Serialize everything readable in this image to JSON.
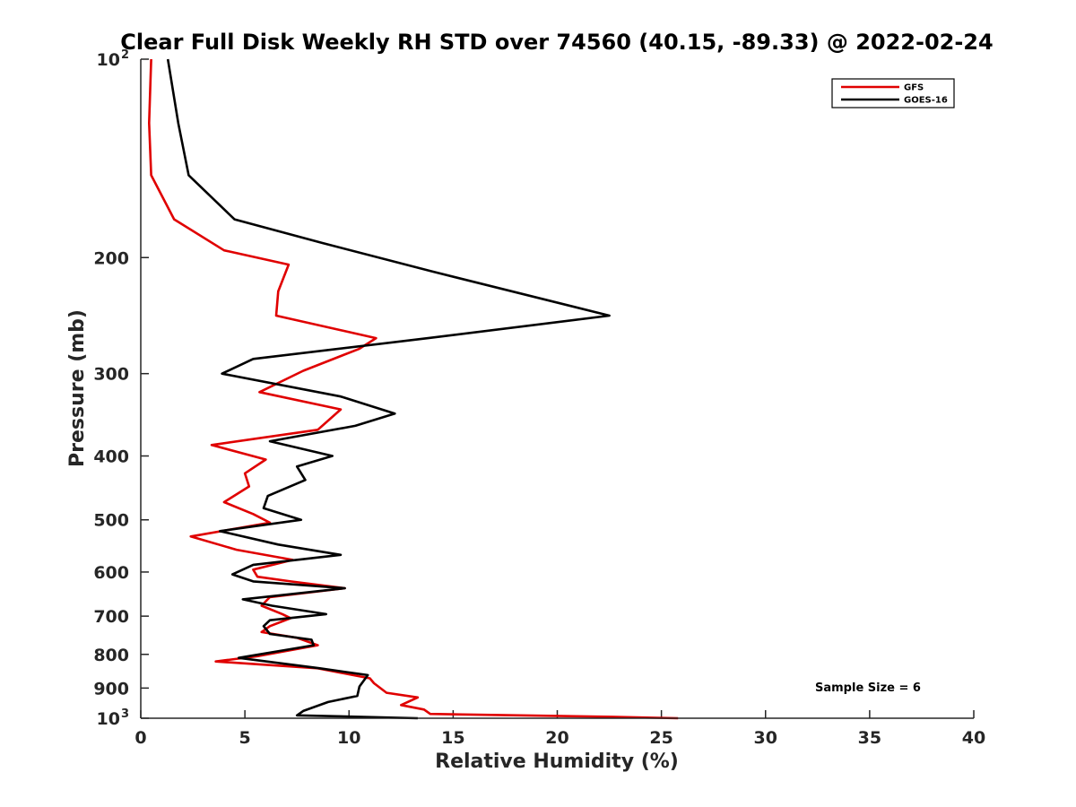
{
  "chart_data": {
    "type": "line",
    "title": "Clear Full Disk Weekly RH STD over 74560 (40.15, -89.33) @ 2022-02-24",
    "xlabel": "Relative Humidity (%)",
    "ylabel": "Pressure (mb)",
    "xlim": [
      0,
      40
    ],
    "ylim": [
      100,
      1000
    ],
    "yscale": "log",
    "y_reversed": true,
    "x_ticks": [
      "0",
      "5",
      "10",
      "15",
      "20",
      "25",
      "30",
      "35",
      "40"
    ],
    "y_ticks": [
      {
        "value": 100,
        "label": "10",
        "exp": "2"
      },
      {
        "value": 200,
        "label": "200"
      },
      {
        "value": 300,
        "label": "300"
      },
      {
        "value": 400,
        "label": "400"
      },
      {
        "value": 500,
        "label": "500"
      },
      {
        "value": 600,
        "label": "600"
      },
      {
        "value": 700,
        "label": "700"
      },
      {
        "value": 800,
        "label": "800"
      },
      {
        "value": 900,
        "label": "900"
      },
      {
        "value": 1000,
        "label": "10",
        "exp": "3"
      }
    ],
    "grid": false,
    "legend_position": "top-right",
    "annotation": "Sample Size = 6",
    "series": [
      {
        "name": "GFS",
        "color": "#e00000",
        "points": [
          [
            0.5,
            100
          ],
          [
            0.4,
            125
          ],
          [
            0.5,
            150
          ],
          [
            1.6,
            175
          ],
          [
            4.0,
            195
          ],
          [
            7.1,
            205
          ],
          [
            6.6,
            225
          ],
          [
            6.5,
            245
          ],
          [
            11.3,
            265
          ],
          [
            10.5,
            275
          ],
          [
            7.8,
            297
          ],
          [
            5.7,
            320
          ],
          [
            9.6,
            340
          ],
          [
            8.5,
            365
          ],
          [
            3.4,
            385
          ],
          [
            6.0,
            405
          ],
          [
            5.0,
            425
          ],
          [
            5.2,
            445
          ],
          [
            4.0,
            470
          ],
          [
            5.4,
            490
          ],
          [
            6.2,
            505
          ],
          [
            2.4,
            530
          ],
          [
            4.6,
            555
          ],
          [
            7.3,
            575
          ],
          [
            5.4,
            595
          ],
          [
            5.6,
            610
          ],
          [
            7.2,
            620
          ],
          [
            9.8,
            635
          ],
          [
            6.2,
            655
          ],
          [
            5.8,
            675
          ],
          [
            6.8,
            695
          ],
          [
            7.2,
            705
          ],
          [
            6.2,
            725
          ],
          [
            5.8,
            740
          ],
          [
            7.5,
            755
          ],
          [
            8.5,
            775
          ],
          [
            5.6,
            805
          ],
          [
            3.6,
            820
          ],
          [
            8.5,
            840
          ],
          [
            11.0,
            870
          ],
          [
            11.2,
            885
          ],
          [
            11.8,
            915
          ],
          [
            13.3,
            930
          ],
          [
            12.5,
            955
          ],
          [
            13.6,
            970
          ],
          [
            13.9,
            985
          ],
          [
            22.6,
            995
          ],
          [
            25.8,
            1000
          ]
        ]
      },
      {
        "name": "GOES-16",
        "color": "#000000",
        "points": [
          [
            1.3,
            100
          ],
          [
            1.8,
            125
          ],
          [
            2.3,
            150
          ],
          [
            4.5,
            175
          ],
          [
            8.7,
            190
          ],
          [
            14.0,
            210
          ],
          [
            22.5,
            245
          ],
          [
            13.8,
            265
          ],
          [
            5.4,
            285
          ],
          [
            3.9,
            300
          ],
          [
            9.6,
            325
          ],
          [
            12.2,
            345
          ],
          [
            10.3,
            360
          ],
          [
            6.2,
            380
          ],
          [
            9.2,
            400
          ],
          [
            7.5,
            415
          ],
          [
            7.9,
            435
          ],
          [
            6.1,
            460
          ],
          [
            5.9,
            480
          ],
          [
            7.7,
            500
          ],
          [
            3.8,
            520
          ],
          [
            6.6,
            545
          ],
          [
            9.6,
            565
          ],
          [
            5.4,
            585
          ],
          [
            4.4,
            605
          ],
          [
            5.4,
            620
          ],
          [
            9.8,
            635
          ],
          [
            4.9,
            660
          ],
          [
            6.3,
            675
          ],
          [
            8.9,
            695
          ],
          [
            6.2,
            710
          ],
          [
            5.9,
            725
          ],
          [
            6.2,
            745
          ],
          [
            8.2,
            760
          ],
          [
            8.3,
            775
          ],
          [
            4.7,
            810
          ],
          [
            8.6,
            840
          ],
          [
            10.9,
            860
          ],
          [
            10.5,
            895
          ],
          [
            10.4,
            925
          ],
          [
            9.0,
            945
          ],
          [
            7.8,
            975
          ],
          [
            7.5,
            990
          ],
          [
            10.5,
            995
          ],
          [
            13.3,
            1000
          ]
        ]
      }
    ]
  }
}
